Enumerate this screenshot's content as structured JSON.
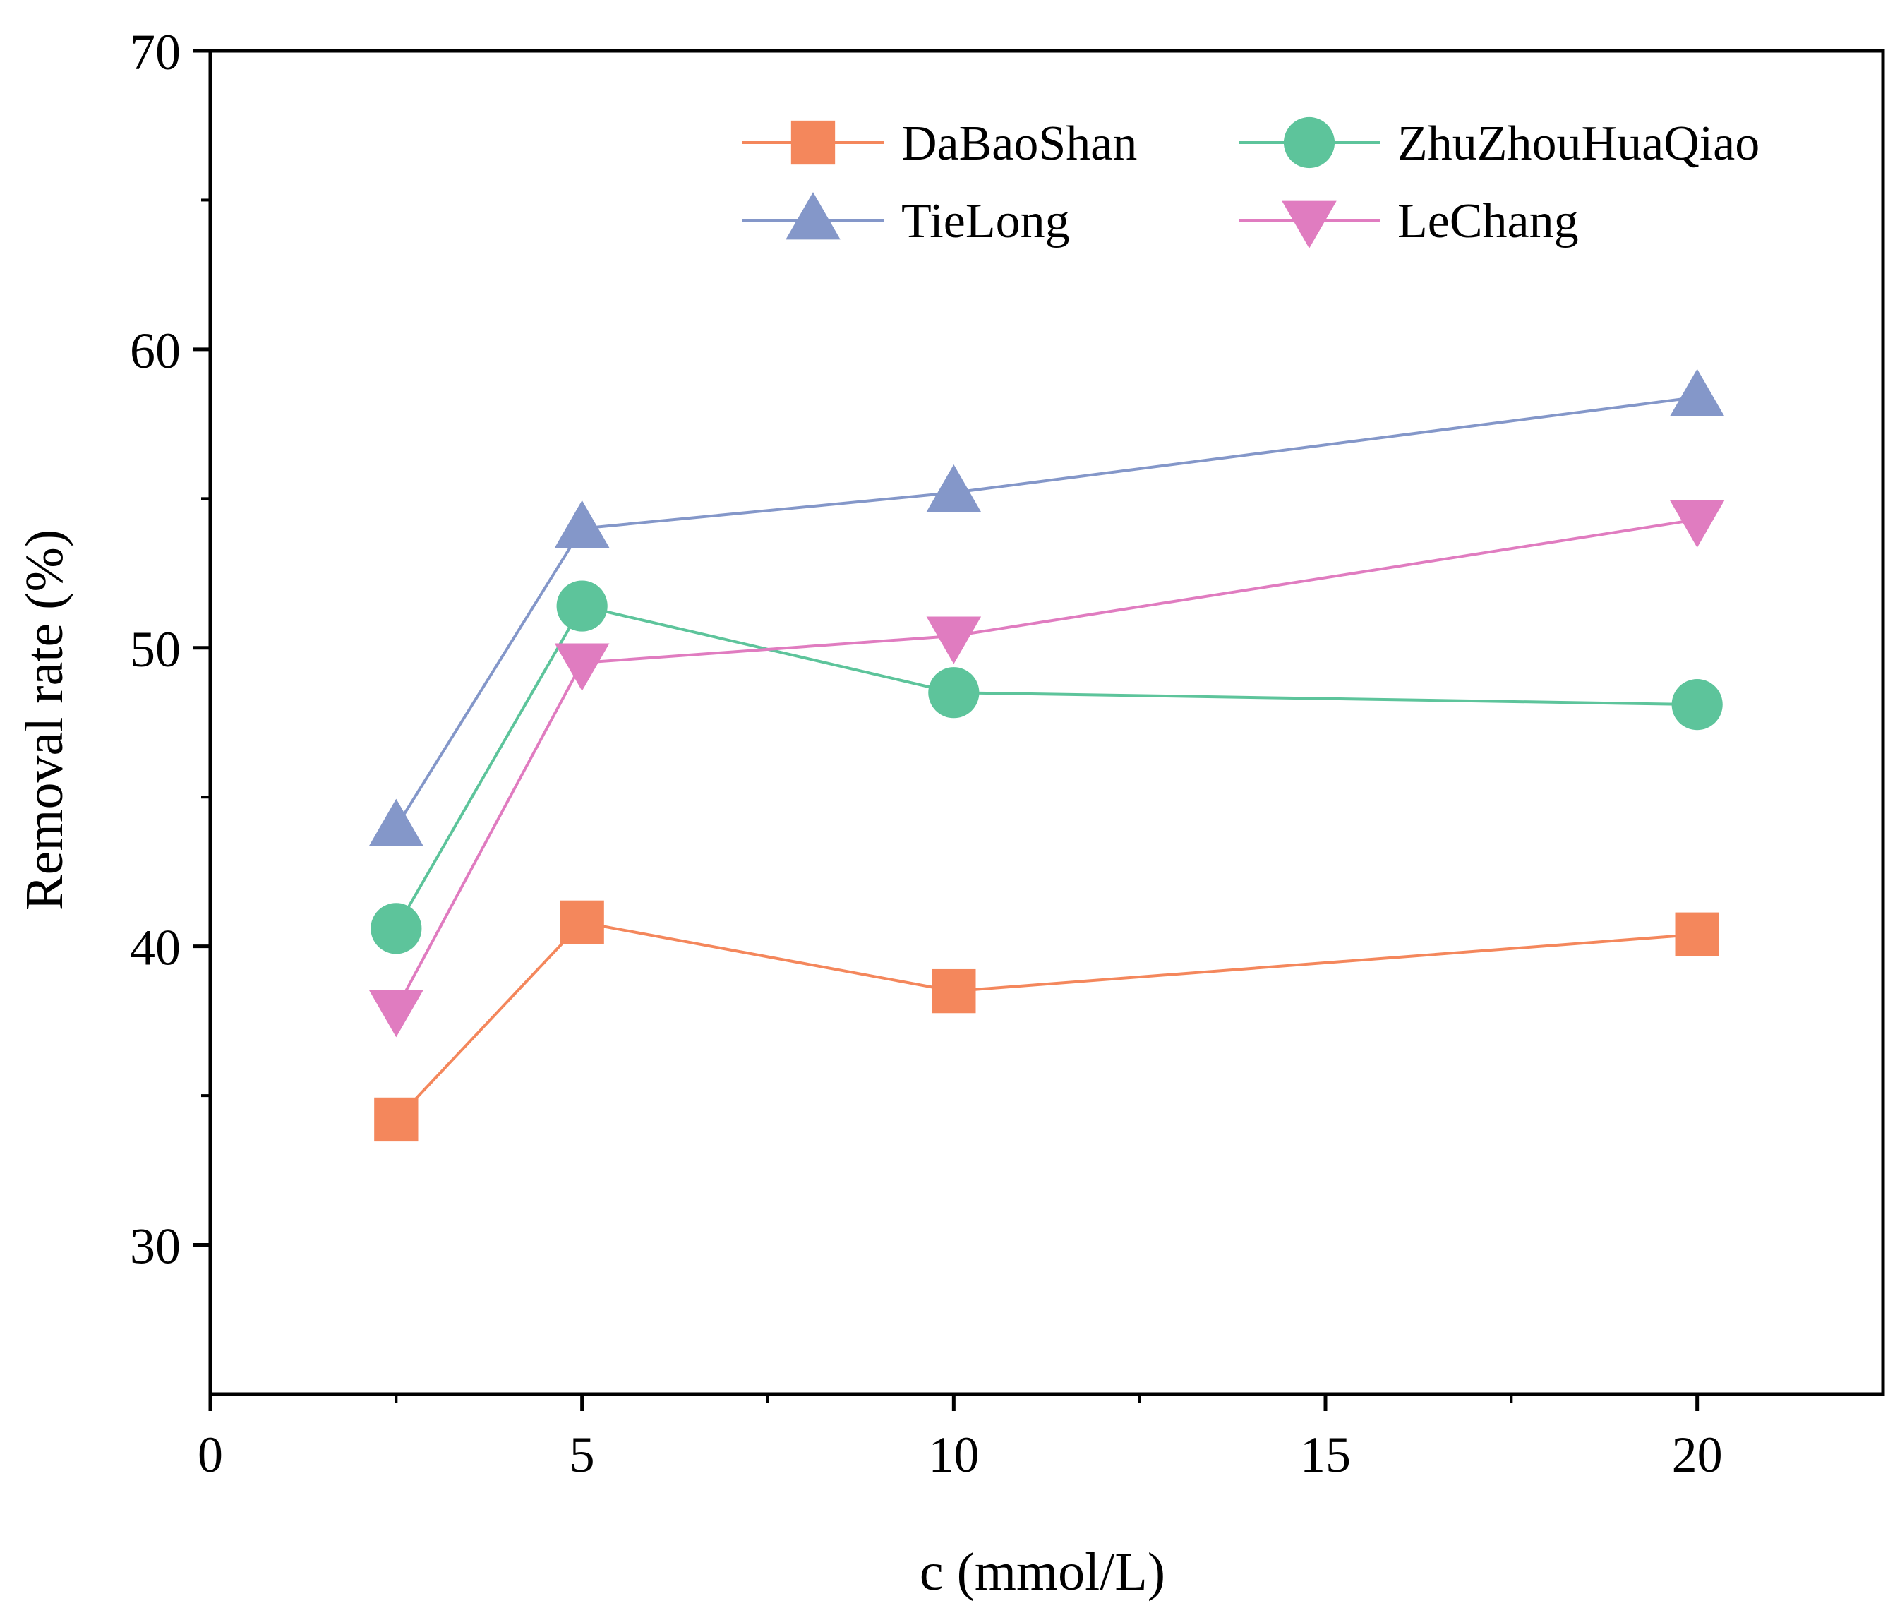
{
  "chart_data": {
    "type": "line",
    "xlabel": "c (mmol/L)",
    "ylabel": "Removal rate (%)",
    "xlim": [
      0,
      22.5
    ],
    "ylim": [
      25,
      70
    ],
    "xticks": [
      0,
      5,
      10,
      15,
      20
    ],
    "yticks": [
      30,
      40,
      50,
      60,
      70
    ],
    "x_tick_labels": [
      "0",
      "5",
      "10",
      "15",
      "20"
    ],
    "y_tick_labels": [
      "30",
      "40",
      "50",
      "60",
      "70"
    ],
    "grid": false,
    "legend_position": "top-right",
    "x": [
      2.5,
      5,
      10,
      20
    ],
    "series": [
      {
        "name": "DaBaoShan",
        "marker": "square",
        "color": "#f4875c",
        "values": [
          34.2,
          40.8,
          38.5,
          40.4
        ]
      },
      {
        "name": "ZhuZhouHuaQiao",
        "marker": "circle",
        "color": "#5dc49b",
        "values": [
          40.6,
          51.4,
          48.5,
          48.1
        ]
      },
      {
        "name": "TieLong",
        "marker": "triangle-up",
        "color": "#8497c9",
        "values": [
          44.0,
          54.0,
          55.2,
          58.4
        ]
      },
      {
        "name": "LeChang",
        "marker": "triangle-down",
        "color": "#e07cc0",
        "values": [
          37.9,
          49.5,
          50.4,
          54.3
        ]
      }
    ]
  }
}
